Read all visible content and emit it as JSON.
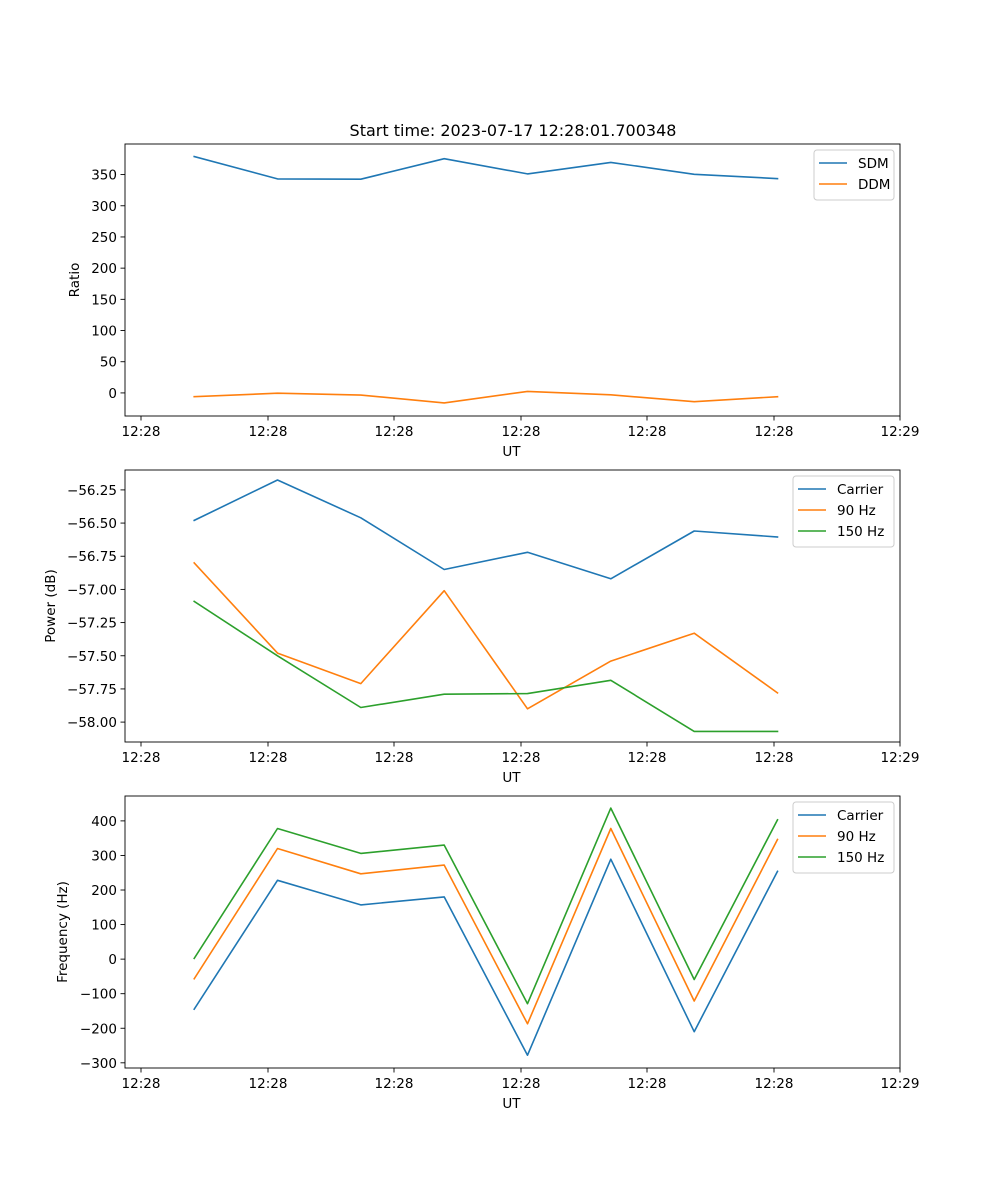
{
  "title": "Start time: 2023-07-17 12:28:01.700348",
  "colors": {
    "blue": "#1f77b4",
    "orange": "#ff7f0e",
    "green": "#2ca02c"
  },
  "chart_data": [
    {
      "type": "line",
      "title": "Start time: 2023-07-17 12:28:01.700348",
      "xlabel": "UT",
      "ylabel": "Ratio",
      "x_tick_labels": [
        "12:28",
        "12:28",
        "12:28",
        "12:28",
        "12:28",
        "12:28",
        "12:29"
      ],
      "y_ticks": [
        0,
        50,
        100,
        150,
        200,
        250,
        300,
        350
      ],
      "ylim": [
        -37,
        399
      ],
      "legend_position": "upper right",
      "grid": false,
      "x": [
        1,
        2,
        3,
        4,
        5,
        6,
        7,
        8
      ],
      "xlim": [
        0.17,
        9.47
      ],
      "series": [
        {
          "name": "SDM",
          "color": "#1f77b4",
          "values": [
            379,
            343,
            342.5,
            375.5,
            351,
            369.5,
            350.5,
            343.5
          ]
        },
        {
          "name": "DDM",
          "color": "#ff7f0e",
          "values": [
            -6,
            -0.5,
            -3.5,
            -16,
            2.5,
            -3,
            -14,
            -6
          ]
        }
      ]
    },
    {
      "type": "line",
      "xlabel": "UT",
      "ylabel": "Power (dB)",
      "x_tick_labels": [
        "12:28",
        "12:28",
        "12:28",
        "12:28",
        "12:28",
        "12:28",
        "12:29"
      ],
      "y_ticks": [
        -58.0,
        -57.75,
        -57.5,
        -57.25,
        -57.0,
        -56.75,
        -56.5,
        -56.25
      ],
      "y_tick_labels": [
        "−58.00",
        "−57.75",
        "−57.50",
        "−57.25",
        "−57.00",
        "−56.75",
        "−56.50",
        "−56.25"
      ],
      "ylim": [
        -58.15,
        -56.1
      ],
      "legend_position": "upper right",
      "grid": false,
      "x": [
        1,
        2,
        3,
        4,
        5,
        6,
        7,
        8
      ],
      "xlim": [
        0.17,
        9.47
      ],
      "series": [
        {
          "name": "Carrier",
          "color": "#1f77b4",
          "values": [
            -56.48,
            -56.175,
            -56.46,
            -56.85,
            -56.72,
            -56.92,
            -56.56,
            -56.605
          ]
        },
        {
          "name": "90 Hz",
          "color": "#ff7f0e",
          "values": [
            -56.8,
            -57.48,
            -57.71,
            -57.01,
            -57.9,
            -57.54,
            -57.33,
            -57.78
          ]
        },
        {
          "name": "150 Hz",
          "color": "#2ca02c",
          "values": [
            -57.09,
            -57.5,
            -57.89,
            -57.79,
            -57.785,
            -57.685,
            -58.07,
            -58.07
          ]
        }
      ]
    },
    {
      "type": "line",
      "xlabel": "UT",
      "ylabel": "Frequency (Hz)",
      "x_tick_labels": [
        "12:28",
        "12:28",
        "12:28",
        "12:28",
        "12:28",
        "12:28",
        "12:29"
      ],
      "y_ticks": [
        -300,
        -200,
        -100,
        0,
        100,
        200,
        300,
        400
      ],
      "y_tick_labels": [
        "−300",
        "−200",
        "−100",
        "0",
        "100",
        "200",
        "300",
        "400"
      ],
      "ylim": [
        -315,
        472
      ],
      "legend_position": "upper right",
      "grid": false,
      "x": [
        1,
        2,
        3,
        4,
        5,
        6,
        7,
        8
      ],
      "xlim": [
        0.17,
        9.47
      ],
      "series": [
        {
          "name": "Carrier",
          "color": "#1f77b4",
          "values": [
            -145,
            228,
            157,
            180,
            -278,
            289,
            -210,
            254
          ]
        },
        {
          "name": "90 Hz",
          "color": "#ff7f0e",
          "values": [
            -57,
            320,
            247,
            272,
            -187,
            378,
            -121,
            346
          ]
        },
        {
          "name": "150 Hz",
          "color": "#2ca02c",
          "values": [
            2,
            378,
            306,
            330,
            -129,
            437,
            -59,
            403
          ]
        }
      ]
    }
  ]
}
